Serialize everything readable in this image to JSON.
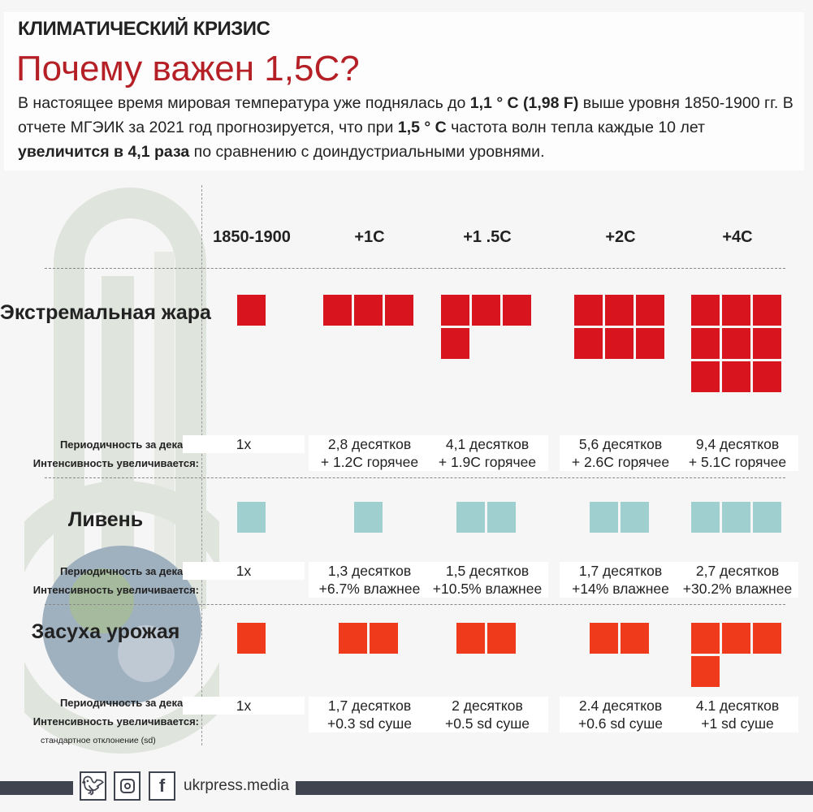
{
  "kicker": "КЛИМАТИЧЕСКИЙ КРИЗИС",
  "title": "Почему важен 1,5С?",
  "intro": {
    "t1": "В настоящее время мировая температура уже поднялась до ",
    "b1": "1,1 ° C (1,98 F)",
    "t2": " выше уровня 1850-1900 гг. В отчете МГЭИК за 2021 год прогнозируется, что при ",
    "b2": "1,5 ° C",
    "t3": " частота волн тепла каждые 10 лет ",
    "b3": "увеличится в 4,1 раза",
    "t4": " по сравнению с доиндустриальными уровнями."
  },
  "columns": [
    "1850-1900",
    "+1C",
    "+1 .5C",
    "+2C",
    "+4C"
  ],
  "colors": {
    "heat": "#d8151f",
    "rain": "#9fd0cf",
    "drought": "#f03a1c",
    "title": "#b52026",
    "footer": "#40444e"
  },
  "labels": {
    "frequency": "Периодичность за декаду:",
    "intensity": "Интенсивность увеличивается:",
    "sd_note": "стандартное отклонение (sd)"
  },
  "rows": [
    {
      "title": "Экстремальная жара",
      "squares": [
        1,
        3,
        4,
        6,
        9
      ],
      "stats": [
        [
          "1x",
          ""
        ],
        [
          "2,8 десятков",
          "+ 1.2C горячее"
        ],
        [
          "4,1 десятков",
          "+ 1.9C горячее"
        ],
        [
          "5,6 десятков",
          "+ 2.6C горячее"
        ],
        [
          "9,4 десятков",
          "+ 5.1C горячее"
        ]
      ]
    },
    {
      "title": "Ливень",
      "squares": [
        1,
        1,
        2,
        2,
        3
      ],
      "stats": [
        [
          "1x",
          ""
        ],
        [
          "1,3 десятков",
          "+6.7% влажнее"
        ],
        [
          "1,5 десятков",
          "+10.5% влажнее"
        ],
        [
          "1,7 десятков",
          "+14% влажнее"
        ],
        [
          "2,7 десятков",
          "+30.2% влажнее"
        ]
      ]
    },
    {
      "title": "Засуха урожая",
      "squares": [
        1,
        2,
        2,
        2,
        4
      ],
      "stats": [
        [
          "1x",
          ""
        ],
        [
          "1,7 десятков",
          "+0.3 sd суше"
        ],
        [
          "2 десятков",
          "+0.5 sd суше"
        ],
        [
          "2.4 десятков",
          "+0.6 sd суше"
        ],
        [
          "4.1 десятков",
          "+1 sd суше"
        ]
      ]
    }
  ],
  "footer": {
    "site": "ukrpress.media",
    "icons": [
      "twitter-icon",
      "instagram-icon",
      "facebook-icon"
    ]
  }
}
